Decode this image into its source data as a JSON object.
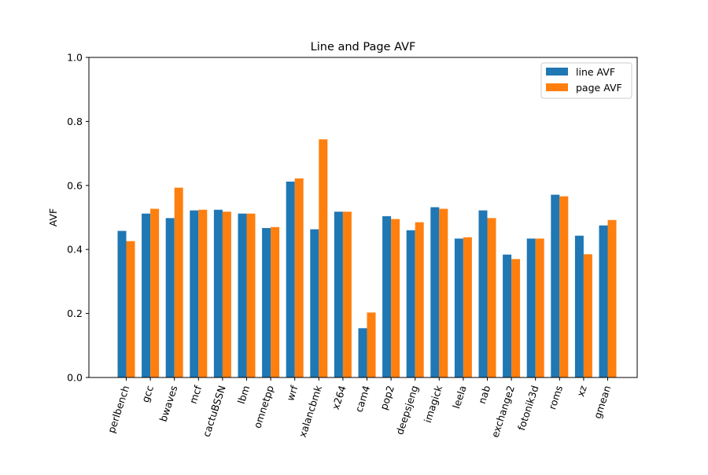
{
  "chart_data": {
    "type": "bar",
    "title": "Line and Page AVF",
    "xlabel": "",
    "ylabel": "AVF",
    "ylim": [
      0,
      1.0
    ],
    "yticks": [
      0.0,
      0.2,
      0.4,
      0.6,
      0.8,
      1.0
    ],
    "ytick_labels": [
      "0.0",
      "0.2",
      "0.4",
      "0.6",
      "0.8",
      "1.0"
    ],
    "grid": false,
    "legend_position": "top-right",
    "categories": [
      "perlbench",
      "gcc",
      "bwaves",
      "mcf",
      "cactuBSSN",
      "lbm",
      "omnetpp",
      "wrf",
      "xalancbmk",
      "x264",
      "cam4",
      "pop2",
      "deepsjeng",
      "imagick",
      "leela",
      "nab",
      "exchange2",
      "fotonik3d",
      "roms",
      "xz",
      "gmean"
    ],
    "series": [
      {
        "name": "line AVF",
        "color": "#1f77b4",
        "values": [
          0.458,
          0.512,
          0.498,
          0.522,
          0.524,
          0.512,
          0.467,
          0.612,
          0.463,
          0.518,
          0.154,
          0.504,
          0.46,
          0.532,
          0.434,
          0.522,
          0.384,
          0.434,
          0.571,
          0.443,
          0.475
        ]
      },
      {
        "name": "page AVF",
        "color": "#ff7f0e",
        "values": [
          0.426,
          0.527,
          0.593,
          0.524,
          0.518,
          0.512,
          0.47,
          0.622,
          0.744,
          0.518,
          0.203,
          0.495,
          0.485,
          0.527,
          0.438,
          0.498,
          0.37,
          0.434,
          0.566,
          0.385,
          0.492
        ]
      }
    ]
  }
}
